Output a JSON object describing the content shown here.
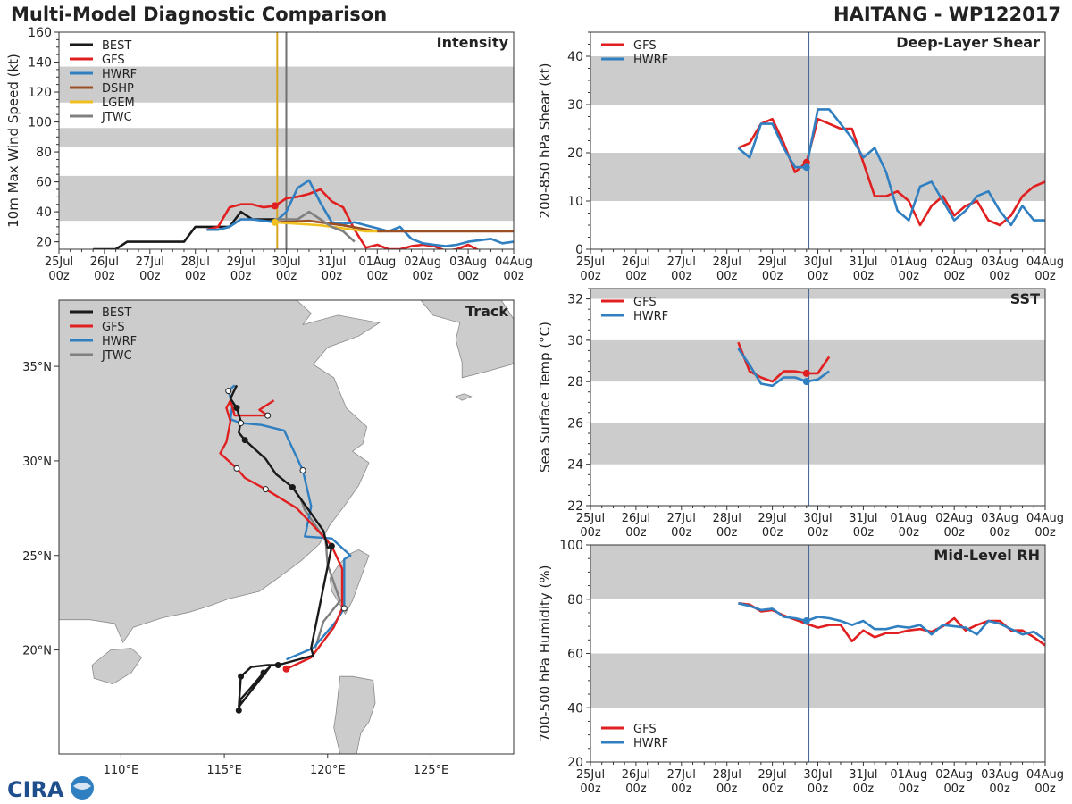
{
  "title": "Multi-Model Diagnostic Comparison",
  "storm": "HAITANG - WP122017",
  "logo_text": "CIRA",
  "colors": {
    "BEST": "#1a1a1a",
    "GFS": "#e02020",
    "HWRF": "#2f7fc1",
    "DSHP": "#9a4f24",
    "LGEM": "#f0c020",
    "JTWC": "#808080",
    "band": "#cccccc",
    "vline_yellow": "#d9a520",
    "vline_grey": "#707070",
    "vline_blue": "#4a6a9a"
  },
  "time_axis": {
    "ticks": [
      "25Jul\n00z",
      "26Jul\n00z",
      "27Jul\n00z",
      "28Jul\n00z",
      "29Jul\n00z",
      "30Jul\n00z",
      "31Jul\n00z",
      "01Aug\n00z",
      "02Aug\n00z",
      "03Aug\n00z",
      "04Aug\n00z"
    ],
    "now": 4.8
  },
  "chart_data": [
    {
      "type": "line",
      "id": "intensity",
      "title": "Intensity",
      "ylabel": "10m Max Wind Speed (kt)",
      "ylim": [
        15,
        160
      ],
      "yticks": [
        20,
        40,
        60,
        80,
        100,
        120,
        140,
        160
      ],
      "bands": [
        [
          34,
          64
        ],
        [
          83,
          96
        ],
        [
          113,
          137
        ]
      ],
      "legend": [
        "BEST",
        "GFS",
        "HWRF",
        "DSHP",
        "LGEM",
        "JTWC"
      ],
      "series": [
        {
          "name": "BEST",
          "x": [
            0.75,
            1.0,
            1.25,
            1.5,
            1.75,
            2.0,
            2.25,
            2.5,
            2.75,
            3.0,
            3.25,
            3.5,
            3.75,
            4.0,
            4.25,
            4.5,
            4.75
          ],
          "y": [
            15,
            15,
            15,
            20,
            20,
            20,
            20,
            20,
            20,
            30,
            30,
            30,
            30,
            40,
            35,
            35,
            35
          ]
        },
        {
          "name": "GFS",
          "x": [
            3.25,
            3.5,
            3.75,
            4.0,
            4.25,
            4.5,
            4.75,
            5.0,
            5.25,
            5.5,
            5.75,
            6.0,
            6.25,
            6.5,
            6.75,
            7.0,
            7.25,
            7.5,
            7.75,
            8.0,
            8.25,
            8.5,
            8.75,
            9.0,
            9.25,
            9.5
          ],
          "y": [
            28,
            30,
            43,
            45,
            45,
            43,
            44,
            49,
            50,
            52,
            55,
            47,
            43,
            28,
            16,
            18,
            15,
            15,
            17,
            18,
            17,
            14,
            15,
            18,
            14,
            14
          ]
        },
        {
          "name": "HWRF",
          "x": [
            3.25,
            3.5,
            3.75,
            4.0,
            4.25,
            4.5,
            4.75,
            5.0,
            5.25,
            5.5,
            5.75,
            6.0,
            6.25,
            6.5,
            6.75,
            7.0,
            7.25,
            7.5,
            7.75,
            8.0,
            8.25,
            8.5,
            8.75,
            9.0,
            9.25,
            9.5,
            9.75,
            10.0
          ],
          "y": [
            28,
            28,
            30,
            35,
            35,
            34,
            33,
            40,
            56,
            61,
            46,
            33,
            32,
            33,
            31,
            29,
            27,
            30,
            22,
            19,
            18,
            17,
            18,
            20,
            21,
            22,
            19,
            20
          ]
        },
        {
          "name": "DSHP",
          "x": [
            4.75,
            5.5,
            6.25,
            7.0,
            8.0,
            9.0,
            10.0
          ],
          "y": [
            33,
            34,
            31,
            27,
            27,
            27,
            27
          ]
        },
        {
          "name": "LGEM",
          "x": [
            4.75,
            5.25,
            5.75,
            6.25,
            6.75,
            7.0
          ],
          "y": [
            33,
            32,
            31,
            29,
            27,
            27
          ]
        },
        {
          "name": "JTWC",
          "x": [
            4.75,
            5.25,
            5.5,
            5.75,
            6.0,
            6.25,
            6.5
          ],
          "y": [
            35,
            35,
            40,
            35,
            30,
            27,
            20
          ]
        }
      ],
      "markers": [
        {
          "series": "GFS",
          "x": 4.75,
          "y": 44
        },
        {
          "series": "LGEM",
          "x": 4.75,
          "y": 33
        }
      ]
    },
    {
      "type": "line",
      "id": "shear",
      "title": "Deep-Layer Shear",
      "ylabel": "200-850 hPa Shear (kt)",
      "ylim": [
        0,
        45
      ],
      "yticks": [
        0,
        10,
        20,
        30,
        40
      ],
      "bands": [
        [
          10,
          20
        ],
        [
          30,
          40
        ]
      ],
      "legend": [
        "GFS",
        "HWRF"
      ],
      "series": [
        {
          "name": "GFS",
          "x": [
            3.25,
            3.5,
            3.75,
            4.0,
            4.25,
            4.5,
            4.75,
            5.0,
            5.25,
            5.5,
            5.75,
            6.0,
            6.25,
            6.5,
            6.75,
            7.0,
            7.25,
            7.5,
            7.75,
            8.0,
            8.25,
            8.5,
            8.75,
            9.0,
            9.25,
            9.5,
            9.75,
            10.0
          ],
          "y": [
            21,
            22,
            26,
            27,
            22,
            16,
            18,
            27,
            26,
            25,
            25,
            18,
            11,
            11,
            12,
            10,
            5,
            9,
            11,
            7,
            9,
            10,
            6,
            5,
            7,
            11,
            13,
            14
          ]
        },
        {
          "name": "HWRF",
          "x": [
            3.25,
            3.5,
            3.75,
            4.0,
            4.25,
            4.5,
            4.75,
            5.0,
            5.25,
            5.5,
            5.75,
            6.0,
            6.25,
            6.5,
            6.75,
            7.0,
            7.25,
            7.5,
            7.75,
            8.0,
            8.25,
            8.5,
            8.75,
            9.0,
            9.25,
            9.5,
            9.75,
            10.0
          ],
          "y": [
            21,
            19,
            26,
            26,
            21,
            17,
            17,
            29,
            29,
            26,
            23,
            19,
            21,
            16,
            8,
            6,
            13,
            14,
            10,
            6,
            8,
            11,
            12,
            8,
            5,
            9,
            6,
            6
          ]
        }
      ],
      "markers": [
        {
          "series": "GFS",
          "x": 4.75,
          "y": 18
        },
        {
          "series": "HWRF",
          "x": 4.75,
          "y": 17
        }
      ]
    },
    {
      "type": "line",
      "id": "sst",
      "title": "SST",
      "ylabel": "Sea Surface Temp (°C)",
      "ylim": [
        22,
        32.5
      ],
      "yticks": [
        22,
        24,
        26,
        28,
        30,
        32
      ],
      "bands": [
        [
          24,
          26
        ],
        [
          28,
          30
        ],
        [
          32,
          33
        ]
      ],
      "legend": [
        "GFS",
        "HWRF"
      ],
      "series": [
        {
          "name": "GFS",
          "x": [
            3.25,
            3.5,
            3.75,
            4.0,
            4.25,
            4.5,
            4.75,
            5.0,
            5.25
          ],
          "y": [
            29.9,
            28.5,
            28.2,
            28.0,
            28.5,
            28.5,
            28.4,
            28.4,
            29.2
          ]
        },
        {
          "name": "HWRF",
          "x": [
            3.25,
            3.5,
            3.75,
            4.0,
            4.25,
            4.5,
            4.75,
            5.0,
            5.25
          ],
          "y": [
            29.6,
            28.8,
            27.9,
            27.8,
            28.2,
            28.2,
            28.0,
            28.1,
            28.5
          ]
        }
      ],
      "markers": [
        {
          "series": "GFS",
          "x": 4.75,
          "y": 28.4
        },
        {
          "series": "HWRF",
          "x": 4.75,
          "y": 28.0
        }
      ]
    },
    {
      "type": "line",
      "id": "rh",
      "title": "Mid-Level RH",
      "ylabel": "700-500 hPa Humidity (%)",
      "ylim": [
        20,
        100
      ],
      "yticks": [
        20,
        40,
        60,
        80,
        100
      ],
      "bands": [
        [
          40,
          60
        ],
        [
          80,
          100
        ]
      ],
      "legend": [
        "GFS",
        "HWRF"
      ],
      "legend_pos": "bottom-left",
      "series": [
        {
          "name": "GFS",
          "x": [
            3.25,
            3.5,
            3.75,
            4.0,
            4.25,
            4.5,
            4.75,
            5.0,
            5.25,
            5.5,
            5.75,
            6.0,
            6.25,
            6.5,
            6.75,
            7.0,
            7.25,
            7.5,
            7.75,
            8.0,
            8.25,
            8.5,
            8.75,
            9.0,
            9.25,
            9.5,
            9.75,
            10.0
          ],
          "y": [
            78.5,
            78,
            75.5,
            76,
            74,
            72.5,
            71,
            69.5,
            70.5,
            70.5,
            64.5,
            68.5,
            66,
            67.5,
            67.5,
            68.5,
            69,
            68,
            70,
            73,
            68.5,
            70.5,
            72,
            72,
            68.5,
            68.5,
            66,
            63
          ]
        },
        {
          "name": "HWRF",
          "x": [
            3.25,
            3.5,
            3.75,
            4.0,
            4.25,
            4.5,
            4.75,
            5.0,
            5.25,
            5.5,
            5.75,
            6.0,
            6.25,
            6.5,
            6.75,
            7.0,
            7.25,
            7.5,
            7.75,
            8.0,
            8.25,
            8.5,
            8.75,
            9.0,
            9.25,
            9.5,
            9.75,
            10.0
          ],
          "y": [
            78.5,
            77.5,
            76,
            76.5,
            73.5,
            73,
            72,
            73.5,
            73,
            72,
            70.5,
            72,
            69,
            69,
            70,
            69.5,
            70.5,
            67,
            70.5,
            70,
            69.5,
            67,
            72,
            71,
            69,
            67,
            68,
            65
          ]
        }
      ],
      "markers": [
        {
          "series": "HWRF",
          "x": 4.75,
          "y": 72
        }
      ]
    },
    {
      "type": "scatter",
      "id": "track",
      "title": "Track",
      "xlim": [
        107,
        129
      ],
      "ylim": [
        14.5,
        38.5
      ],
      "xticks": [
        110,
        115,
        120,
        125
      ],
      "xtick_labels": [
        "110°E",
        "115°E",
        "120°E",
        "125°E"
      ],
      "yticks": [
        20,
        25,
        30,
        35
      ],
      "ytick_labels": [
        "20°N",
        "25°N",
        "30°N",
        "35°N"
      ],
      "legend": [
        "BEST",
        "GFS",
        "HWRF",
        "JTWC"
      ],
      "series": [
        {
          "name": "BEST",
          "points": [
            [
              115.7,
              16.8
            ],
            [
              115.8,
              17.4
            ],
            [
              116.2,
              17.9
            ],
            [
              116.9,
              18.8
            ],
            [
              117.2,
              19.1
            ],
            [
              115.7,
              17.0
            ],
            [
              115.8,
              18.6
            ],
            [
              116.3,
              19.1
            ],
            [
              117.1,
              19.2
            ],
            [
              117.6,
              19.2
            ],
            [
              119.3,
              19.7
            ],
            [
              119.2,
              20.1
            ],
            [
              120.2,
              25.5
            ],
            [
              120.0,
              25.4
            ],
            [
              119.8,
              26.3
            ],
            [
              118.3,
              28.6
            ],
            [
              117.5,
              29.3
            ],
            [
              117.0,
              30.1
            ],
            [
              116.0,
              31.1
            ],
            [
              115.7,
              31.5
            ],
            [
              115.8,
              32.1
            ],
            [
              115.6,
              32.8
            ],
            [
              115.3,
              33.3
            ],
            [
              115.6,
              34.0
            ]
          ]
        },
        {
          "name": "GFS",
          "points": [
            [
              118.0,
              19.0
            ],
            [
              119.2,
              19.6
            ],
            [
              120.3,
              21.2
            ],
            [
              120.7,
              22.2
            ],
            [
              120.7,
              24.3
            ],
            [
              120.2,
              25.5
            ],
            [
              119.8,
              26.0
            ],
            [
              118.5,
              27.5
            ],
            [
              117.0,
              28.5
            ],
            [
              116.0,
              29.1
            ],
            [
              115.6,
              29.6
            ],
            [
              114.8,
              30.4
            ],
            [
              115.1,
              31.0
            ],
            [
              115.3,
              32.1
            ],
            [
              115.1,
              32.8
            ],
            [
              115.3,
              33.2
            ],
            [
              115.5,
              32.4
            ],
            [
              117.1,
              32.4
            ],
            [
              116.7,
              32.7
            ],
            [
              117.4,
              33.2
            ]
          ]
        },
        {
          "name": "HWRF",
          "points": [
            [
              118.0,
              19.5
            ],
            [
              119.3,
              20.1
            ],
            [
              120.4,
              21.5
            ],
            [
              120.8,
              22.2
            ],
            [
              120.8,
              24.8
            ],
            [
              121.1,
              25.0
            ],
            [
              120.2,
              25.9
            ],
            [
              118.9,
              26.0
            ],
            [
              119.2,
              27.6
            ],
            [
              118.8,
              29.5
            ],
            [
              117.9,
              31.6
            ],
            [
              116.8,
              31.9
            ],
            [
              115.8,
              32.0
            ],
            [
              115.3,
              32.2
            ],
            [
              115.4,
              33.0
            ],
            [
              115.2,
              33.7
            ],
            [
              115.5,
              34.0
            ]
          ]
        },
        {
          "name": "JTWC",
          "points": [
            [
              119.4,
              20.1
            ],
            [
              119.8,
              21.5
            ],
            [
              120.6,
              22.6
            ],
            [
              120.0,
              24.5
            ],
            [
              119.9,
              25.8
            ],
            [
              118.9,
              27.4
            ],
            [
              118.7,
              28.0
            ]
          ]
        }
      ]
    }
  ]
}
